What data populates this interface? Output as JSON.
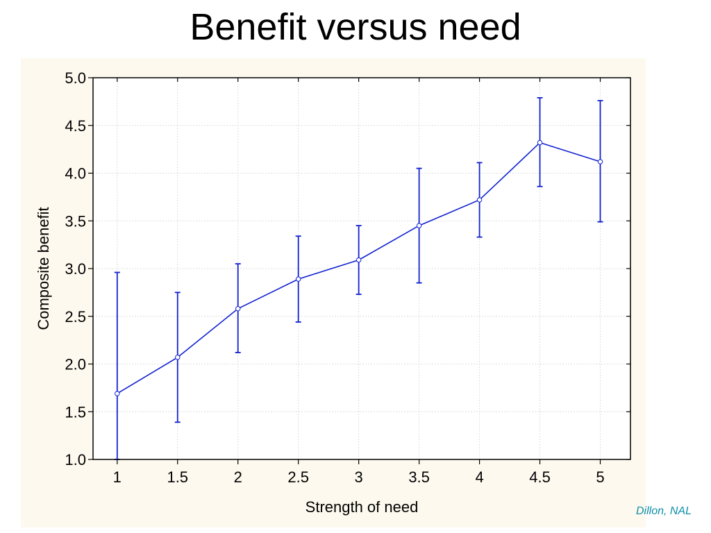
{
  "slide": {
    "title": "Benefit versus need",
    "credit": "Dillon, NAL"
  },
  "colors": {
    "panel_background": "#fdf9ee",
    "series": "#1020d0",
    "grid": "#dddddd"
  },
  "chart_data": {
    "type": "line",
    "title": "",
    "xlabel": "Strength of need",
    "ylabel": "Composite benefit",
    "xlim": [
      0.8,
      5.25
    ],
    "ylim": [
      1.0,
      5.0
    ],
    "x_ticks": [
      1,
      1.5,
      2,
      2.5,
      3,
      3.5,
      4,
      4.5,
      5
    ],
    "x_tick_labels": [
      "1",
      "1.5",
      "2",
      "2.5",
      "3",
      "3.5",
      "4",
      "4.5",
      "5"
    ],
    "y_ticks": [
      1.0,
      1.5,
      2.0,
      2.5,
      3.0,
      3.5,
      4.0,
      4.5,
      5.0
    ],
    "y_tick_labels": [
      "1.0",
      "1.5",
      "2.0",
      "2.5",
      "3.0",
      "3.5",
      "4.0",
      "4.5",
      "5.0"
    ],
    "grid": true,
    "series": [
      {
        "x": [
          1,
          1.5,
          2,
          2.5,
          3,
          3.5,
          4,
          4.5,
          5
        ],
        "y": [
          1.69,
          2.07,
          2.58,
          2.89,
          3.09,
          3.45,
          3.72,
          4.32,
          4.12
        ],
        "error_low": [
          1.0,
          1.39,
          2.12,
          2.44,
          2.73,
          2.85,
          3.33,
          3.86,
          3.49
        ],
        "error_high": [
          2.96,
          2.75,
          3.05,
          3.34,
          3.45,
          4.05,
          4.11,
          4.79,
          4.76
        ]
      }
    ]
  }
}
